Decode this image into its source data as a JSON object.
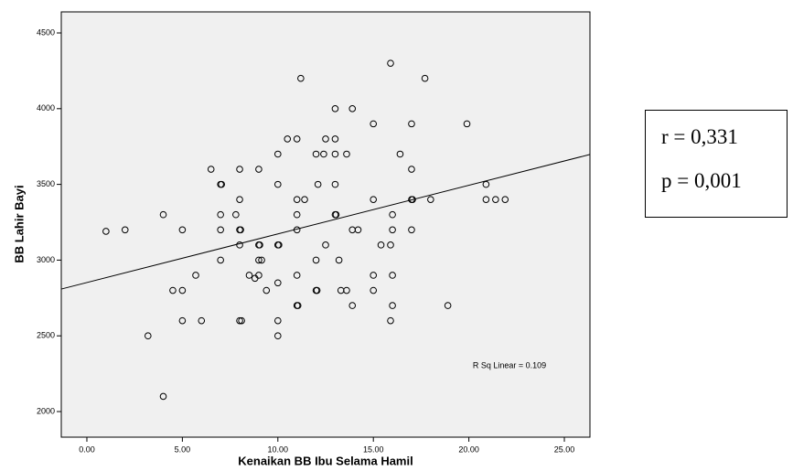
{
  "chart_data": {
    "type": "scatter",
    "x_label": "Kenaikan BB Ibu Selama Hamil",
    "y_label": "BB Lahir Bayi",
    "annotation": "R Sq Linear = 0.109",
    "stats": [
      "r = 0,331",
      "p = 0,001"
    ],
    "color": "#000000",
    "background": "#f0f0f0",
    "fit": {
      "intercept": 2852,
      "slope": 32.1
    },
    "xlim": [
      -1.34,
      26.34
    ],
    "ylim": [
      1831,
      4639
    ],
    "xticks": [
      {
        "value": 0,
        "label": "0.00"
      },
      {
        "value": 5,
        "label": "5.00"
      },
      {
        "value": 10,
        "label": "10.00"
      },
      {
        "value": 15,
        "label": "15.00"
      },
      {
        "value": 20,
        "label": "20.00"
      },
      {
        "value": 25,
        "label": "25.00"
      }
    ],
    "yticks": [
      2000,
      2500,
      3000,
      3500,
      4000,
      4500
    ],
    "x": [
      1.0,
      2,
      4,
      3.2,
      4,
      4.5,
      5,
      5,
      5,
      5.7,
      6,
      6.5,
      7,
      7.05,
      7,
      7,
      7,
      7.8,
      8,
      8,
      8,
      8.05,
      8,
      8,
      8.1,
      8.5,
      8.8,
      9,
      9,
      9.05,
      9,
      9.15,
      9,
      9.4,
      10,
      10,
      10,
      10.05,
      10,
      10,
      10,
      10.5,
      11,
      11,
      11,
      11,
      11,
      11,
      11.05,
      11.2,
      11.4,
      12,
      12,
      12.05,
      12,
      12.1,
      12.5,
      12.4,
      12.5,
      13,
      13,
      13,
      13,
      13,
      13.05,
      13.2,
      13.3,
      13.6,
      13.6,
      13.9,
      13.9,
      14.2,
      13.9,
      15,
      15,
      15,
      15,
      15.4,
      15.9,
      15.9,
      16,
      16,
      16,
      16,
      15.9,
      16.4,
      17,
      17,
      17,
      17.05,
      17,
      17.7,
      18,
      18.9,
      19.9,
      20.9,
      20.9,
      21.4,
      21.9
    ],
    "y": [
      3190,
      3200,
      3300,
      2500,
      2100,
      2800,
      2800,
      3200,
      2600,
      2900,
      2600,
      3600,
      3500,
      3500,
      3300,
      3200,
      3000,
      3300,
      3600,
      3400,
      3200,
      3200,
      3100,
      2600,
      2600,
      2900,
      2880,
      3600,
      3100,
      3100,
      3000,
      3000,
      2900,
      2800,
      3700,
      3500,
      3100,
      3100,
      2850,
      2600,
      2500,
      3800,
      3800,
      3400,
      3300,
      3200,
      2900,
      2700,
      2700,
      4200,
      3400,
      3000,
      2800,
      2800,
      3700,
      3500,
      3800,
      3700,
      3100,
      4000,
      3800,
      3700,
      3500,
      3300,
      3300,
      3000,
      2800,
      3700,
      2800,
      4000,
      3200,
      3200,
      2700,
      3900,
      3400,
      2900,
      2800,
      3100,
      3100,
      4300,
      3300,
      3200,
      2900,
      2700,
      2600,
      3700,
      3900,
      3600,
      3400,
      3400,
      3200,
      4200,
      3400,
      2700,
      3900,
      3500,
      3400,
      3400,
      3400
    ]
  }
}
